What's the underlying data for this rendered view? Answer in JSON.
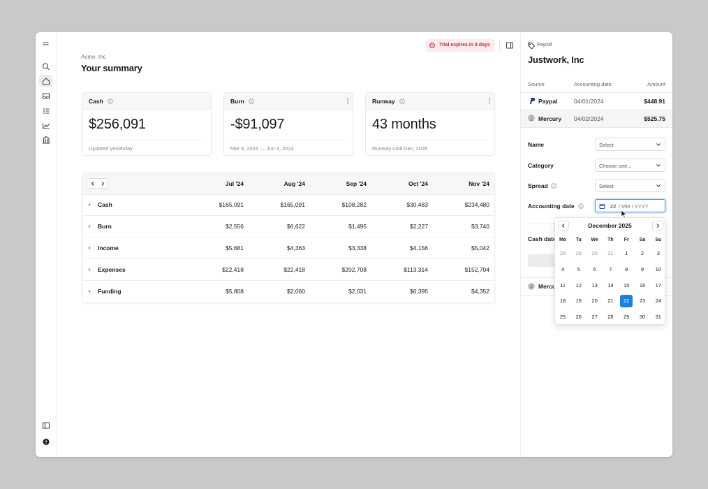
{
  "header": {
    "company": "Acme, Inc",
    "title": "Your summary",
    "trial": "Trial expires in 8 days"
  },
  "cards": [
    {
      "label": "Cash",
      "value": "$256,091",
      "footer": "Updated yesterday"
    },
    {
      "label": "Burn",
      "value": "-$91,097",
      "footer": "Mar 4, 2024 — Jun 4, 2024"
    },
    {
      "label": "Runway",
      "value": "43 months",
      "footer": "Runway until Dec, 2028"
    }
  ],
  "table": {
    "columns": [
      "Jul '24",
      "Aug '24",
      "Sep '24",
      "Oct '24",
      "Nov '24"
    ],
    "rows": [
      {
        "label": "Cash",
        "values": [
          "$165,091",
          "$165,091",
          "$108,282",
          "$30,483",
          "$234,480"
        ]
      },
      {
        "label": "Burn",
        "values": [
          "$2,556",
          "$6,622",
          "$1,495",
          "$2,227",
          "$3,740"
        ]
      },
      {
        "label": "Income",
        "values": [
          "$5,681",
          "$4,363",
          "$3,338",
          "$4,156",
          "$5,042"
        ]
      },
      {
        "label": "Expenses",
        "values": [
          "$22,418",
          "$22,418",
          "$202,708",
          "$113,314",
          "$152,704"
        ]
      },
      {
        "label": "Funding",
        "values": [
          "$5,808",
          "$2,060",
          "$2,031",
          "$6,395",
          "$4,352"
        ]
      }
    ]
  },
  "panel": {
    "tag": "Payroll",
    "title": "Justwork, Inc",
    "columns": [
      "Source",
      "Accounting date",
      "Amount"
    ],
    "rows": [
      {
        "source": "Paypal",
        "date": "04/01/2024",
        "amount": "$448.91"
      },
      {
        "source": "Mercury",
        "date": "04/02/2024",
        "amount": "$525.75"
      }
    ],
    "fields": [
      {
        "label": "Name",
        "value": "Select"
      },
      {
        "label": "Category",
        "value": "Choose one..."
      },
      {
        "label": "Spread",
        "value": "Select"
      },
      {
        "label": "Accounting date",
        "day": "22",
        "rest": "/ MM / YYYY"
      }
    ],
    "cash_date_label": "Cash date",
    "bottom_row": "Mercury"
  },
  "calendar": {
    "month": "December 2025",
    "weekdays": [
      "Mo",
      "Tu",
      "We",
      "Th",
      "Fr",
      "Sa",
      "Su"
    ],
    "weeks": [
      [
        28,
        29,
        30,
        31,
        1,
        2,
        3
      ],
      [
        4,
        5,
        6,
        7,
        8,
        9,
        10
      ],
      [
        11,
        12,
        13,
        14,
        15,
        16,
        17
      ],
      [
        18,
        19,
        20,
        21,
        22,
        23,
        24
      ],
      [
        25,
        26,
        27,
        28,
        29,
        30,
        31
      ]
    ]
  }
}
